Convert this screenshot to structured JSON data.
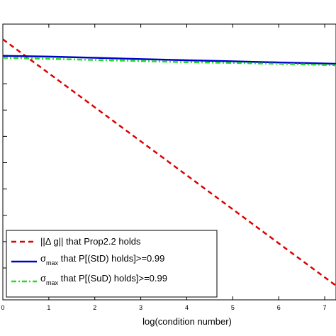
{
  "chart_data": {
    "type": "line",
    "xlabel": "log(condition number)",
    "ylabel": "",
    "title": "",
    "xlim": [
      0,
      7.5
    ],
    "ylim": [
      0,
      10
    ],
    "grid": false,
    "legend_position": "bottom-left",
    "x_ticks": [
      "0",
      "1",
      "2",
      "3",
      "4",
      "5",
      "6",
      "7"
    ],
    "y_tick_count": 9,
    "series": [
      {
        "name_parts": [
          "||",
          "Δ",
          " g|| that Prop2.2 holds"
        ],
        "style": "dashed",
        "color": "#dd0000",
        "x": [
          0,
          7.5
        ],
        "y": [
          9.45,
          0.2
        ]
      },
      {
        "name_parts": [
          "σ",
          "max",
          " that P[(StD) holds]>=0.99"
        ],
        "style": "solid",
        "color": "#0000cc",
        "x": [
          0,
          1,
          2,
          3,
          4,
          5,
          6,
          7,
          7.5
        ],
        "y": [
          8.85,
          8.82,
          8.78,
          8.73,
          8.69,
          8.65,
          8.61,
          8.57,
          8.55
        ]
      },
      {
        "name_parts": [
          "σ",
          "max",
          " that P[(SuD) holds]>=0.99"
        ],
        "style": "dash-dot",
        "color": "#22dd22",
        "x": [
          0,
          1,
          2,
          3,
          4,
          5,
          6,
          7,
          7.5
        ],
        "y": [
          8.78,
          8.74,
          8.7,
          8.66,
          8.62,
          8.59,
          8.56,
          8.52,
          8.5
        ]
      }
    ]
  }
}
